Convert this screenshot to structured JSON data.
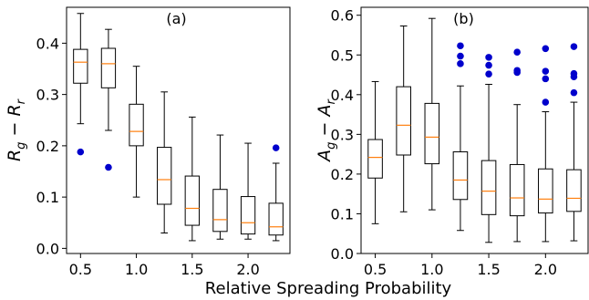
{
  "figure": {
    "shared_xlabel": "Relative Spreading Probability"
  },
  "chart_data": [
    {
      "type": "box",
      "title": "(a)",
      "ylabel": "R_g − R_r",
      "ylabel_parts": {
        "main": "R",
        "sub1": "g",
        "minus": " − ",
        "main2": "R",
        "sub2": "r"
      },
      "xlim": [
        0.375,
        2.375
      ],
      "ylim": [
        -0.01,
        0.47
      ],
      "xticks": [
        0.5,
        1.0,
        1.5,
        2.0
      ],
      "xtick_labels": [
        "0.5",
        "1.0",
        "1.5",
        "2.0"
      ],
      "yticks": [
        0.0,
        0.1,
        0.2,
        0.3,
        0.4
      ],
      "ytick_labels": [
        "0.0",
        "0.1",
        "0.2",
        "0.3",
        "0.4"
      ],
      "grid": false,
      "colors": {
        "box": "#000000",
        "median": "#ff7f0e",
        "outlier": "#0000cc"
      },
      "boxes": [
        {
          "x": 0.5,
          "whislo": 0.243,
          "q1": 0.322,
          "med": 0.363,
          "q3": 0.388,
          "whishi": 0.458,
          "fliers": [
            0.188
          ]
        },
        {
          "x": 0.75,
          "whislo": 0.23,
          "q1": 0.313,
          "med": 0.36,
          "q3": 0.39,
          "whishi": 0.427,
          "fliers": [
            0.158
          ]
        },
        {
          "x": 1.0,
          "whislo": 0.1,
          "q1": 0.2,
          "med": 0.228,
          "q3": 0.281,
          "whishi": 0.355,
          "fliers": []
        },
        {
          "x": 1.25,
          "whislo": 0.03,
          "q1": 0.086,
          "med": 0.134,
          "q3": 0.197,
          "whishi": 0.305,
          "fliers": []
        },
        {
          "x": 1.5,
          "whislo": 0.015,
          "q1": 0.045,
          "med": 0.078,
          "q3": 0.141,
          "whishi": 0.256,
          "fliers": []
        },
        {
          "x": 1.75,
          "whislo": 0.018,
          "q1": 0.033,
          "med": 0.056,
          "q3": 0.115,
          "whishi": 0.221,
          "fliers": []
        },
        {
          "x": 2.0,
          "whislo": 0.018,
          "q1": 0.028,
          "med": 0.05,
          "q3": 0.101,
          "whishi": 0.205,
          "fliers": []
        },
        {
          "x": 2.25,
          "whislo": 0.015,
          "q1": 0.026,
          "med": 0.042,
          "q3": 0.088,
          "whishi": 0.166,
          "fliers": [
            0.196
          ]
        }
      ]
    },
    {
      "type": "box",
      "title": "(b)",
      "ylabel": "A_g − A_r",
      "ylabel_parts": {
        "main": "A",
        "sub1": "g",
        "minus": " − ",
        "main2": "A",
        "sub2": "r"
      },
      "xlim": [
        0.375,
        2.375
      ],
      "ylim": [
        0.0,
        0.62
      ],
      "xticks": [
        0.5,
        1.0,
        1.5,
        2.0
      ],
      "xtick_labels": [
        "0.5",
        "1.0",
        "1.5",
        "2.0"
      ],
      "yticks": [
        0.0,
        0.1,
        0.2,
        0.3,
        0.4,
        0.5,
        0.6
      ],
      "ytick_labels": [
        "0.0",
        "0.1",
        "0.2",
        "0.3",
        "0.4",
        "0.5",
        "0.6"
      ],
      "grid": false,
      "colors": {
        "box": "#000000",
        "median": "#ff7f0e",
        "outlier": "#0000cc"
      },
      "boxes": [
        {
          "x": 0.5,
          "whislo": 0.075,
          "q1": 0.19,
          "med": 0.242,
          "q3": 0.287,
          "whishi": 0.433,
          "fliers": []
        },
        {
          "x": 0.75,
          "whislo": 0.105,
          "q1": 0.248,
          "med": 0.323,
          "q3": 0.42,
          "whishi": 0.573,
          "fliers": []
        },
        {
          "x": 1.0,
          "whislo": 0.11,
          "q1": 0.226,
          "med": 0.293,
          "q3": 0.378,
          "whishi": 0.592,
          "fliers": []
        },
        {
          "x": 1.25,
          "whislo": 0.058,
          "q1": 0.136,
          "med": 0.185,
          "q3": 0.256,
          "whishi": 0.422,
          "fliers": [
            0.478,
            0.497,
            0.523
          ]
        },
        {
          "x": 1.5,
          "whislo": 0.028,
          "q1": 0.098,
          "med": 0.157,
          "q3": 0.234,
          "whishi": 0.426,
          "fliers": [
            0.452,
            0.474,
            0.494
          ]
        },
        {
          "x": 1.75,
          "whislo": 0.03,
          "q1": 0.095,
          "med": 0.14,
          "q3": 0.224,
          "whishi": 0.375,
          "fliers": [
            0.456,
            0.461,
            0.507
          ]
        },
        {
          "x": 2.0,
          "whislo": 0.03,
          "q1": 0.102,
          "med": 0.137,
          "q3": 0.213,
          "whishi": 0.357,
          "fliers": [
            0.381,
            0.44,
            0.459,
            0.516
          ]
        },
        {
          "x": 2.25,
          "whislo": 0.032,
          "q1": 0.106,
          "med": 0.139,
          "q3": 0.211,
          "whishi": 0.381,
          "fliers": [
            0.405,
            0.445,
            0.453,
            0.521
          ]
        }
      ]
    }
  ]
}
